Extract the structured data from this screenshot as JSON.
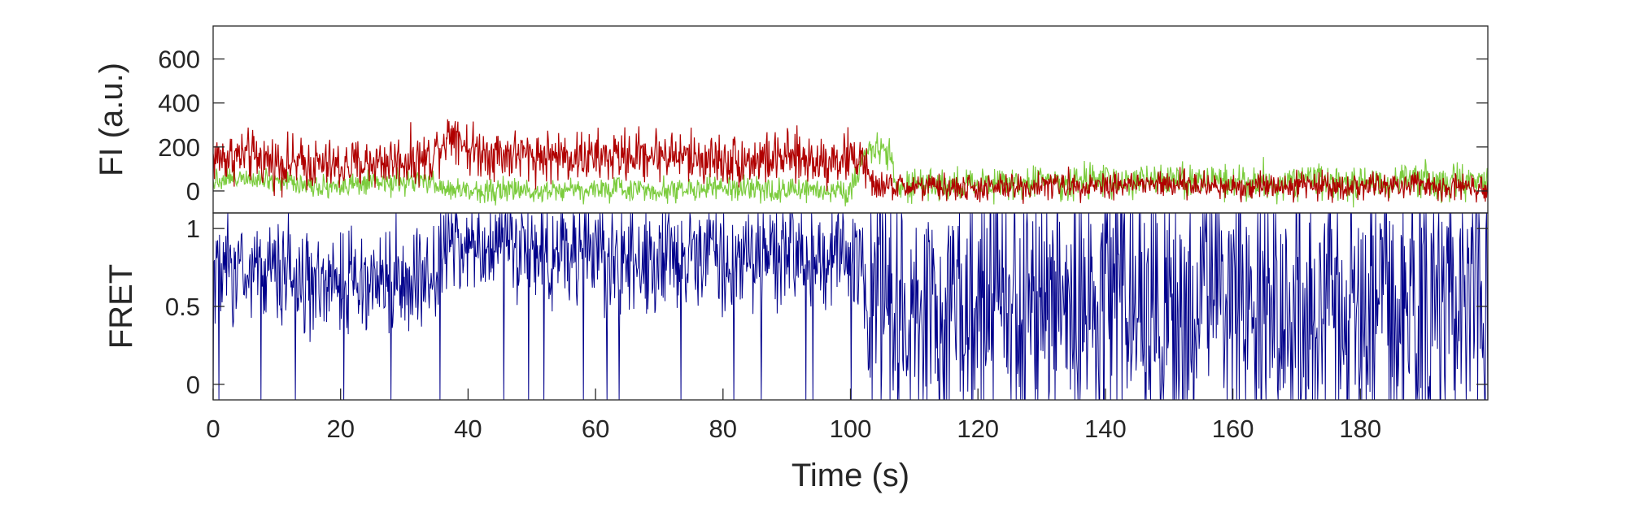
{
  "chart_data": [
    {
      "panel": "top",
      "type": "line",
      "ylabel": "FI (a.u.)",
      "xlim": [
        0,
        200
      ],
      "ylim": [
        -100,
        750
      ],
      "yticks": [
        0,
        200,
        400,
        600
      ],
      "ytick_labels": [
        "0",
        "200",
        "400",
        "600"
      ],
      "grid": false,
      "series": [
        {
          "color": "#b00000",
          "x": [
            0,
            5,
            10,
            15,
            20,
            25,
            30,
            34,
            36,
            38,
            40,
            45,
            50,
            55,
            60,
            65,
            70,
            75,
            80,
            85,
            90,
            95,
            100,
            102,
            103,
            105,
            110,
            120,
            130,
            140,
            150,
            160,
            170,
            180,
            190,
            200
          ],
          "values": [
            150,
            160,
            130,
            120,
            110,
            130,
            140,
            150,
            230,
            280,
            190,
            170,
            160,
            160,
            150,
            160,
            170,
            150,
            140,
            140,
            150,
            140,
            150,
            150,
            30,
            20,
            20,
            10,
            25,
            30,
            30,
            20,
            30,
            20,
            25,
            20
          ]
        },
        {
          "color": "#7ccc3e",
          "x": [
            0,
            5,
            10,
            15,
            20,
            25,
            30,
            34,
            36,
            40,
            45,
            50,
            55,
            60,
            65,
            70,
            75,
            80,
            85,
            90,
            95,
            100,
            102,
            104,
            105,
            106,
            107,
            110,
            120,
            130,
            140,
            150,
            160,
            170,
            180,
            190,
            200
          ],
          "values": [
            50,
            70,
            50,
            30,
            20,
            30,
            40,
            40,
            10,
            0,
            5,
            0,
            10,
            5,
            10,
            5,
            10,
            10,
            5,
            0,
            5,
            0,
            150,
            220,
            200,
            180,
            30,
            20,
            30,
            40,
            40,
            50,
            40,
            40,
            40,
            45,
            40
          ]
        }
      ]
    },
    {
      "panel": "bottom",
      "type": "line",
      "xlabel": "Time (s)",
      "ylabel": "FRET",
      "xlim": [
        0,
        200
      ],
      "ylim": [
        -0.1,
        1.1
      ],
      "xticks": [
        0,
        20,
        40,
        60,
        80,
        100,
        120,
        140,
        160,
        180
      ],
      "xtick_labels": [
        "0",
        "20",
        "40",
        "60",
        "80",
        "100",
        "120",
        "140",
        "160",
        "180"
      ],
      "yticks": [
        0,
        0.5,
        1
      ],
      "ytick_labels": [
        "0",
        "0.5",
        "1"
      ],
      "grid": false,
      "series": [
        {
          "color": "#00008b",
          "x": [
            0,
            10,
            20,
            30,
            34,
            36,
            40,
            50,
            60,
            70,
            80,
            90,
            100,
            102,
            103,
            105,
            120,
            140,
            160,
            180,
            200
          ],
          "values": [
            0.7,
            0.7,
            0.62,
            0.68,
            0.65,
            0.9,
            0.9,
            0.85,
            0.8,
            0.82,
            0.8,
            0.82,
            0.85,
            0.82,
            0.0,
            0.5,
            0.55,
            0.55,
            0.55,
            0.55,
            0.55
          ]
        }
      ]
    }
  ]
}
